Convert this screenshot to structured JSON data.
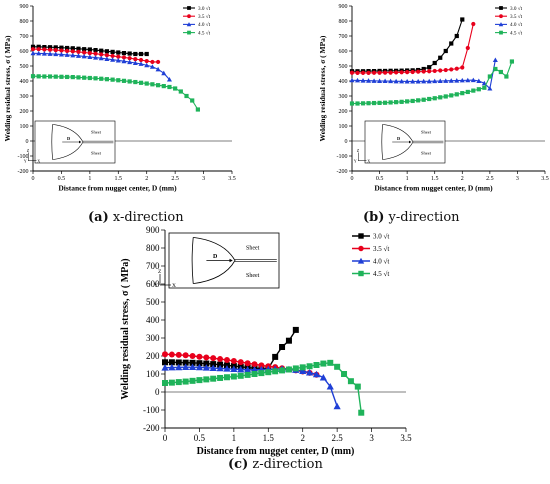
{
  "captions": [
    {
      "label": "(a)",
      "text": " x-direction"
    },
    {
      "label": "(b)",
      "text": " y-direction"
    },
    {
      "label": "(c)",
      "text": " z-direction"
    }
  ],
  "colors": {
    "s30": "#000000",
    "s35": "#e8001c",
    "s40": "#1f3fd6",
    "s45": "#1fb35a"
  },
  "inset": {
    "sheet_top": "Sheet",
    "sheet_bottom": "Sheet",
    "d": "D",
    "z": "Z",
    "x": "X",
    "y": "Y"
  },
  "chart_data": [
    {
      "type": "line",
      "ylabel": "Welding residual stress, σ ( MPa)",
      "xlabel": "Distance from nugget center, D (mm)",
      "xlim": [
        0,
        3.5
      ],
      "ylim": [
        -200,
        900
      ],
      "xticks": [
        "0",
        "0.5",
        "1",
        "1.5",
        "2",
        "2.5",
        "3",
        "3.5"
      ],
      "yticks": [
        "-200",
        "-100",
        "0",
        "100",
        "200",
        "300",
        "400",
        "500",
        "600",
        "700",
        "800",
        "900"
      ],
      "grid": false,
      "legend": "top-right",
      "series": [
        {
          "name": "3.0 √t",
          "marker": "square",
          "x": [
            0,
            0.1,
            0.2,
            0.3,
            0.4,
            0.5,
            0.6,
            0.7,
            0.8,
            0.9,
            1.0,
            1.1,
            1.2,
            1.3,
            1.4,
            1.5,
            1.6,
            1.7,
            1.8,
            1.9,
            2.0
          ],
          "y": [
            628,
            628,
            626,
            625,
            624,
            622,
            620,
            618,
            615,
            612,
            610,
            606,
            602,
            598,
            594,
            590,
            586,
            583,
            580,
            580,
            580
          ]
        },
        {
          "name": "3.5 √t",
          "marker": "circle",
          "x": [
            0,
            0.1,
            0.2,
            0.3,
            0.4,
            0.5,
            0.6,
            0.7,
            0.8,
            0.9,
            1.0,
            1.1,
            1.2,
            1.3,
            1.4,
            1.5,
            1.6,
            1.7,
            1.8,
            1.9,
            2.0,
            2.1,
            2.2
          ],
          "y": [
            612,
            612,
            610,
            608,
            606,
            603,
            600,
            597,
            594,
            590,
            586,
            582,
            577,
            572,
            567,
            562,
            557,
            552,
            546,
            540,
            533,
            527,
            527
          ]
        },
        {
          "name": "4.0 √t",
          "marker": "triangle",
          "x": [
            0,
            0.1,
            0.2,
            0.3,
            0.4,
            0.5,
            0.6,
            0.7,
            0.8,
            0.9,
            1.0,
            1.1,
            1.2,
            1.3,
            1.4,
            1.5,
            1.6,
            1.7,
            1.8,
            1.9,
            2.0,
            2.1,
            2.2,
            2.3,
            2.4
          ],
          "y": [
            585,
            584,
            583,
            581,
            579,
            577,
            574,
            571,
            568,
            564,
            560,
            556,
            552,
            547,
            542,
            537,
            532,
            526,
            520,
            514,
            505,
            495,
            478,
            452,
            410
          ]
        },
        {
          "name": "4.5 √t",
          "marker": "square",
          "x": [
            0,
            0.1,
            0.2,
            0.3,
            0.4,
            0.5,
            0.6,
            0.7,
            0.8,
            0.9,
            1.0,
            1.1,
            1.2,
            1.3,
            1.4,
            1.5,
            1.6,
            1.7,
            1.8,
            1.9,
            2.0,
            2.1,
            2.2,
            2.3,
            2.4,
            2.5,
            2.6,
            2.7,
            2.8,
            2.9
          ],
          "y": [
            432,
            431,
            430,
            430,
            429,
            428,
            427,
            426,
            424,
            422,
            420,
            418,
            415,
            412,
            409,
            405,
            401,
            397,
            393,
            388,
            383,
            378,
            372,
            366,
            360,
            350,
            330,
            300,
            270,
            210
          ]
        }
      ]
    },
    {
      "type": "line",
      "ylabel": "Welding residual stress, σ ( MPa)",
      "xlabel": "Distance from nugget center, D (mm)",
      "xlim": [
        0,
        3.5
      ],
      "ylim": [
        -200,
        900
      ],
      "xticks": [
        "0",
        "0.5",
        "1",
        "1.5",
        "2",
        "2.5",
        "3",
        "3.5"
      ],
      "yticks": [
        "-200",
        "-100",
        "0",
        "100",
        "200",
        "300",
        "400",
        "500",
        "600",
        "700",
        "800",
        "900"
      ],
      "grid": false,
      "legend": "top-right",
      "series": [
        {
          "name": "3.0 √t",
          "marker": "square",
          "x": [
            0,
            0.1,
            0.2,
            0.3,
            0.4,
            0.5,
            0.6,
            0.7,
            0.8,
            0.9,
            1.0,
            1.1,
            1.2,
            1.3,
            1.4,
            1.5,
            1.6,
            1.7,
            1.8,
            1.9,
            2.0
          ],
          "y": [
            465,
            465,
            465,
            466,
            466,
            467,
            467,
            468,
            468,
            469,
            470,
            471,
            473,
            480,
            492,
            520,
            555,
            600,
            650,
            700,
            810
          ]
        },
        {
          "name": "3.5 √t",
          "marker": "circle",
          "x": [
            0,
            0.1,
            0.2,
            0.3,
            0.4,
            0.5,
            0.6,
            0.7,
            0.8,
            0.9,
            1.0,
            1.1,
            1.2,
            1.3,
            1.4,
            1.5,
            1.6,
            1.7,
            1.8,
            1.9,
            2.0,
            2.1,
            2.2
          ],
          "y": [
            455,
            454,
            454,
            454,
            455,
            455,
            456,
            456,
            457,
            458,
            459,
            460,
            462,
            463,
            465,
            467,
            470,
            473,
            477,
            482,
            490,
            620,
            780
          ]
        },
        {
          "name": "4.0 √t",
          "marker": "triangle",
          "x": [
            0,
            0.1,
            0.2,
            0.3,
            0.4,
            0.5,
            0.6,
            0.7,
            0.8,
            0.9,
            1.0,
            1.1,
            1.2,
            1.3,
            1.4,
            1.5,
            1.6,
            1.7,
            1.8,
            1.9,
            2.0,
            2.1,
            2.2,
            2.3,
            2.4,
            2.5,
            2.6
          ],
          "y": [
            405,
            404,
            403,
            402,
            401,
            400,
            400,
            399,
            398,
            398,
            397,
            397,
            397,
            398,
            398,
            399,
            400,
            401,
            402,
            403,
            404,
            405,
            406,
            400,
            385,
            350,
            540
          ]
        },
        {
          "name": "4.5 √t",
          "marker": "square",
          "x": [
            0,
            0.1,
            0.2,
            0.3,
            0.4,
            0.5,
            0.6,
            0.7,
            0.8,
            0.9,
            1.0,
            1.1,
            1.2,
            1.3,
            1.4,
            1.5,
            1.6,
            1.7,
            1.8,
            1.9,
            2.0,
            2.1,
            2.2,
            2.3,
            2.4,
            2.5,
            2.6,
            2.7,
            2.8,
            2.9
          ],
          "y": [
            250,
            250,
            251,
            252,
            253,
            254,
            255,
            257,
            259,
            261,
            264,
            267,
            271,
            275,
            280,
            285,
            291,
            297,
            304,
            311,
            319,
            327,
            336,
            345,
            355,
            430,
            480,
            460,
            430,
            530
          ]
        }
      ]
    },
    {
      "type": "line",
      "ylabel": "Welding residual stress, σ ( MPa)",
      "xlabel": "Distance from nugget center, D (mm)",
      "xlim": [
        0,
        3.5
      ],
      "ylim": [
        -200,
        900
      ],
      "xticks": [
        "0",
        "0.5",
        "1",
        "1.5",
        "2",
        "2.5",
        "3",
        "3.5"
      ],
      "yticks": [
        "-200",
        "-100",
        "0",
        "100",
        "200",
        "300",
        "400",
        "500",
        "600",
        "700",
        "800",
        "900"
      ],
      "grid": false,
      "legend": "right",
      "series": [
        {
          "name": "3.0 √t",
          "marker": "square",
          "x": [
            0,
            0.1,
            0.2,
            0.3,
            0.4,
            0.5,
            0.6,
            0.7,
            0.8,
            0.9,
            1.0,
            1.1,
            1.2,
            1.3,
            1.4,
            1.5,
            1.6,
            1.7,
            1.8,
            1.9
          ],
          "y": [
            165,
            165,
            164,
            163,
            162,
            160,
            158,
            155,
            152,
            148,
            144,
            140,
            136,
            132,
            130,
            130,
            195,
            250,
            285,
            345
          ]
        },
        {
          "name": "3.5 √t",
          "marker": "circle",
          "x": [
            0,
            0.1,
            0.2,
            0.3,
            0.4,
            0.5,
            0.6,
            0.7,
            0.8,
            0.9,
            1.0,
            1.1,
            1.2,
            1.3,
            1.4,
            1.5,
            1.6,
            1.7,
            1.8,
            1.9,
            2.0,
            2.1,
            2.2
          ],
          "y": [
            210,
            208,
            206,
            204,
            200,
            196,
            192,
            188,
            183,
            178,
            172,
            166,
            160,
            154,
            148,
            143,
            138,
            132,
            126,
            120,
            114,
            106,
            96
          ]
        },
        {
          "name": "4.0 √t",
          "marker": "triangle",
          "x": [
            0,
            0.1,
            0.2,
            0.3,
            0.4,
            0.5,
            0.6,
            0.7,
            0.8,
            0.9,
            1.0,
            1.1,
            1.2,
            1.3,
            1.4,
            1.5,
            1.6,
            1.7,
            1.8,
            1.9,
            2.0,
            2.1,
            2.2,
            2.3,
            2.4,
            2.5
          ],
          "y": [
            135,
            136,
            137,
            138,
            138,
            137,
            135,
            133,
            131,
            129,
            127,
            125,
            124,
            124,
            125,
            126,
            127,
            128,
            126,
            122,
            116,
            108,
            98,
            80,
            30,
            -80
          ]
        },
        {
          "name": "4.5 √t",
          "marker": "square",
          "x": [
            0,
            0.1,
            0.2,
            0.3,
            0.4,
            0.5,
            0.6,
            0.7,
            0.8,
            0.9,
            1.0,
            1.1,
            1.2,
            1.3,
            1.4,
            1.5,
            1.6,
            1.7,
            1.8,
            1.9,
            2.0,
            2.1,
            2.2,
            2.3,
            2.4,
            2.5,
            2.6,
            2.7,
            2.8,
            2.85
          ],
          "y": [
            50,
            52,
            55,
            58,
            62,
            66,
            70,
            74,
            78,
            82,
            86,
            90,
            95,
            100,
            105,
            110,
            115,
            120,
            125,
            131,
            137,
            143,
            150,
            158,
            162,
            140,
            100,
            60,
            30,
            -115
          ]
        }
      ]
    }
  ]
}
